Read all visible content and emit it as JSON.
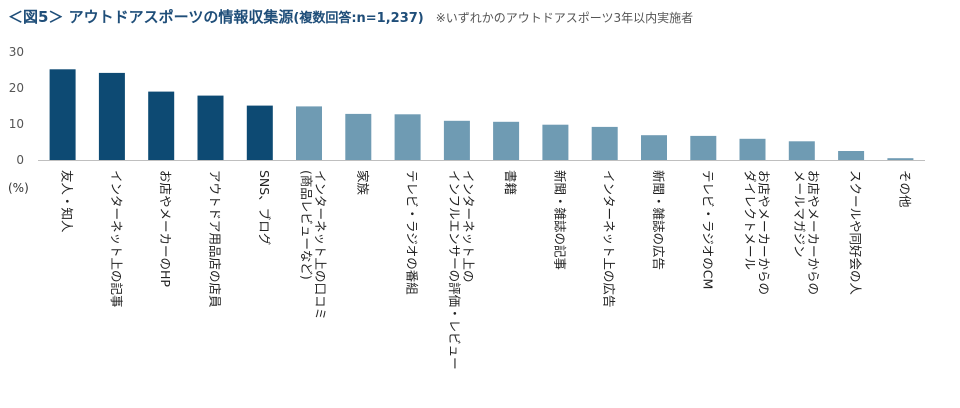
{
  "header": {
    "title": "＜図5＞ アウトドアスポーツの情報収集源",
    "sample": "(複数回答:n=1,237)",
    "note": "※いずれかのアウトドアスポーツ3年以内実施者"
  },
  "colors": {
    "title": "#1f4e79",
    "bar_dark": "#0d4a73",
    "bar_light": "#6f9bb3",
    "axis": "#bfbfbf"
  },
  "chart_data": {
    "type": "bar",
    "unit_label": "(%)",
    "ylim": [
      0,
      30
    ],
    "yticks": [
      0,
      10,
      20,
      30
    ],
    "grid": false,
    "categories": [
      "友人・知人",
      "インターネット上の記事",
      "お店やメーカーのHP",
      "アウトドア用品店の店員",
      "SNS、ブログ",
      "インターネット上の口コミ\n(商品レビューなど)",
      "家族",
      "テレビ・ラジオの番組",
      "インターネット上の\nインフルエンサーの評価・レビュー",
      "書籍",
      "新聞・雑誌の記事",
      "インターネット上の広告",
      "新聞・雑誌の広告",
      "テレビ・ラジオのCM",
      "お店やメーカーからの\nダイレクトメール",
      "お店やメーカーからの\nメールマガジン",
      "スクールや同好会の人",
      "その他"
    ],
    "values": [
      25.2,
      24.2,
      19.0,
      17.9,
      15.1,
      14.9,
      12.8,
      12.7,
      10.9,
      10.6,
      9.8,
      9.2,
      6.9,
      6.7,
      5.9,
      5.2,
      2.5,
      0.5
    ],
    "highlighted_count": 5
  }
}
